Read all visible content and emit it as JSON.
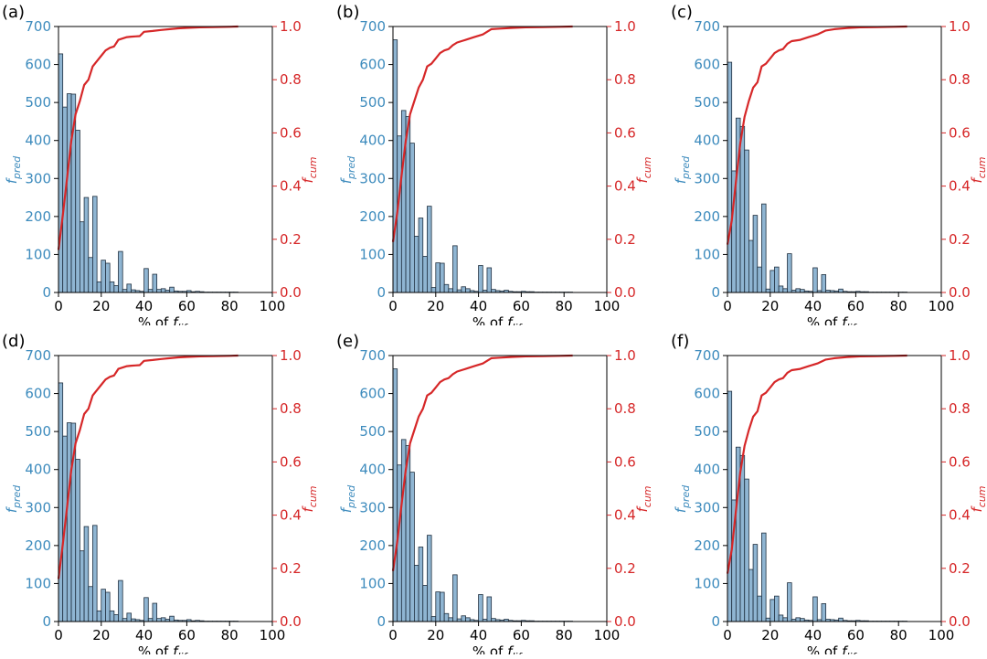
{
  "chart_data": [
    {
      "panel_label": "(a)",
      "type": "bar",
      "xlabel_prefix": "% of ",
      "xlabel_main": "f",
      "xlabel_sub": "life",
      "ylabel_left_main": "f",
      "ylabel_left_sub": "pred",
      "ylabel_right_main": "f",
      "ylabel_right_sub": "cum",
      "xlim": [
        0,
        100
      ],
      "ylim_left": [
        0,
        700
      ],
      "ylim_right": [
        0,
        1.0
      ],
      "x_ticks": [
        "0",
        "20",
        "40",
        "60",
        "80",
        "100"
      ],
      "y_ticks_left": [
        "0",
        "100",
        "200",
        "300",
        "400",
        "500",
        "600",
        "700"
      ],
      "y_ticks_right": [
        "0.0",
        "0.2",
        "0.4",
        "0.6",
        "0.8",
        "1.0"
      ],
      "bin_width": 2,
      "bins": [
        0,
        2,
        4,
        6,
        8,
        10,
        12,
        14,
        16,
        18,
        20,
        22,
        24,
        26,
        28,
        30,
        32,
        34,
        36,
        38,
        40,
        42,
        44,
        46,
        48,
        50,
        52,
        54,
        56,
        58,
        60,
        62,
        64,
        66,
        68,
        70,
        72,
        74,
        76,
        78,
        80,
        82
      ],
      "series": [
        {
          "name": "f_pred",
          "values": [
            628,
            488,
            523,
            522,
            427,
            186,
            250,
            92,
            253,
            28,
            85,
            77,
            28,
            18,
            108,
            8,
            22,
            7,
            5,
            3,
            63,
            8,
            48,
            8,
            10,
            6,
            14,
            4,
            3,
            3,
            5,
            2,
            3,
            2,
            1,
            1,
            1,
            1,
            1,
            1,
            1,
            1
          ]
        },
        {
          "name": "f_cum",
          "x": [
            0,
            2,
            4,
            6,
            8,
            10,
            12,
            14,
            16,
            18,
            20,
            22,
            24,
            26,
            28,
            30,
            32,
            34,
            36,
            38,
            40,
            44,
            48,
            52,
            56,
            60,
            66,
            72,
            80,
            84
          ],
          "values": [
            0.16,
            0.29,
            0.43,
            0.57,
            0.67,
            0.72,
            0.78,
            0.8,
            0.85,
            0.87,
            0.89,
            0.91,
            0.92,
            0.925,
            0.95,
            0.955,
            0.96,
            0.962,
            0.963,
            0.964,
            0.98,
            0.983,
            0.987,
            0.99,
            0.993,
            0.995,
            0.997,
            0.998,
            0.999,
            1.0
          ]
        }
      ]
    },
    {
      "panel_label": "(b)",
      "type": "bar",
      "xlabel_prefix": "% of ",
      "xlabel_main": "f",
      "xlabel_sub": "life",
      "ylabel_left_main": "f",
      "ylabel_left_sub": "pred",
      "ylabel_right_main": "f",
      "ylabel_right_sub": "cum",
      "xlim": [
        0,
        100
      ],
      "ylim_left": [
        0,
        700
      ],
      "ylim_right": [
        0,
        1.0
      ],
      "x_ticks": [
        "0",
        "20",
        "40",
        "60",
        "80",
        "100"
      ],
      "y_ticks_left": [
        "0",
        "100",
        "200",
        "300",
        "400",
        "500",
        "600",
        "700"
      ],
      "y_ticks_right": [
        "0.0",
        "0.2",
        "0.4",
        "0.6",
        "0.8",
        "1.0"
      ],
      "bin_width": 2,
      "bins": [
        0,
        2,
        4,
        6,
        8,
        10,
        12,
        14,
        16,
        18,
        20,
        22,
        24,
        26,
        28,
        30,
        32,
        34,
        36,
        38,
        40,
        42,
        44,
        46,
        48,
        50,
        52,
        54,
        56,
        58,
        60,
        62,
        64,
        66,
        68,
        70,
        72,
        74,
        76,
        78,
        80,
        82
      ],
      "series": [
        {
          "name": "f_pred",
          "values": [
            665,
            412,
            479,
            463,
            393,
            148,
            196,
            95,
            227,
            13,
            78,
            77,
            21,
            10,
            123,
            7,
            15,
            10,
            5,
            3,
            71,
            6,
            65,
            8,
            5,
            4,
            6,
            3,
            2,
            2,
            3,
            2,
            2,
            1,
            1,
            1,
            1,
            1,
            1,
            1,
            1,
            1
          ]
        },
        {
          "name": "f_cum",
          "x": [
            0,
            2,
            4,
            6,
            8,
            10,
            12,
            14,
            16,
            18,
            20,
            22,
            24,
            26,
            28,
            30,
            34,
            38,
            42,
            46,
            50,
            56,
            62,
            70,
            78,
            84
          ],
          "values": [
            0.19,
            0.3,
            0.44,
            0.57,
            0.67,
            0.72,
            0.77,
            0.8,
            0.85,
            0.86,
            0.88,
            0.9,
            0.91,
            0.915,
            0.93,
            0.94,
            0.95,
            0.96,
            0.97,
            0.99,
            0.992,
            0.995,
            0.997,
            0.998,
            0.999,
            1.0
          ]
        }
      ]
    },
    {
      "panel_label": "(c)",
      "type": "bar",
      "xlabel_prefix": "% of ",
      "xlabel_main": "f",
      "xlabel_sub": "life",
      "ylabel_left_main": "f",
      "ylabel_left_sub": "pred",
      "ylabel_right_main": "f",
      "ylabel_right_sub": "cum",
      "xlim": [
        0,
        100
      ],
      "ylim_left": [
        0,
        700
      ],
      "ylim_right": [
        0,
        1.0
      ],
      "x_ticks": [
        "0",
        "20",
        "40",
        "60",
        "80",
        "100"
      ],
      "y_ticks_left": [
        "0",
        "100",
        "200",
        "300",
        "400",
        "500",
        "600",
        "700"
      ],
      "y_ticks_right": [
        "0.0",
        "0.2",
        "0.4",
        "0.6",
        "0.8",
        "1.0"
      ],
      "bin_width": 2,
      "bins": [
        0,
        2,
        4,
        6,
        8,
        10,
        12,
        14,
        16,
        18,
        20,
        22,
        24,
        26,
        28,
        30,
        32,
        34,
        36,
        38,
        40,
        42,
        44,
        46,
        48,
        50,
        52,
        54,
        56,
        58,
        60,
        62,
        64,
        66,
        68,
        70,
        72,
        74,
        76,
        78,
        80,
        82
      ],
      "series": [
        {
          "name": "f_pred",
          "values": [
            606,
            320,
            459,
            437,
            375,
            137,
            203,
            67,
            233,
            9,
            58,
            67,
            17,
            10,
            102,
            6,
            10,
            8,
            4,
            3,
            65,
            5,
            47,
            6,
            5,
            4,
            9,
            3,
            2,
            2,
            3,
            2,
            2,
            1,
            1,
            1,
            1,
            1,
            1,
            1,
            1,
            1
          ]
        },
        {
          "name": "f_cum",
          "x": [
            0,
            2,
            4,
            6,
            8,
            10,
            12,
            14,
            16,
            18,
            20,
            22,
            24,
            26,
            28,
            30,
            34,
            38,
            42,
            46,
            50,
            56,
            62,
            70,
            78,
            84
          ],
          "values": [
            0.18,
            0.27,
            0.42,
            0.56,
            0.66,
            0.72,
            0.77,
            0.79,
            0.85,
            0.86,
            0.88,
            0.9,
            0.91,
            0.915,
            0.935,
            0.945,
            0.95,
            0.96,
            0.97,
            0.985,
            0.99,
            0.994,
            0.997,
            0.998,
            0.999,
            1.0
          ]
        }
      ]
    },
    {
      "panel_label": "(d)",
      "type": "bar",
      "xlabel_prefix": "% of ",
      "xlabel_main": "f",
      "xlabel_sub": "life",
      "ylabel_left_main": "f",
      "ylabel_left_sub": "pred",
      "ylabel_right_main": "f",
      "ylabel_right_sub": "cum",
      "xlim": [
        0,
        100
      ],
      "ylim_left": [
        0,
        700
      ],
      "ylim_right": [
        0,
        1.0
      ],
      "x_ticks": [
        "0",
        "20",
        "40",
        "60",
        "80",
        "100"
      ],
      "y_ticks_left": [
        "0",
        "100",
        "200",
        "300",
        "400",
        "500",
        "600",
        "700"
      ],
      "y_ticks_right": [
        "0.0",
        "0.2",
        "0.4",
        "0.6",
        "0.8",
        "1.0"
      ],
      "bin_width": 2,
      "bins": [
        0,
        2,
        4,
        6,
        8,
        10,
        12,
        14,
        16,
        18,
        20,
        22,
        24,
        26,
        28,
        30,
        32,
        34,
        36,
        38,
        40,
        42,
        44,
        46,
        48,
        50,
        52,
        54,
        56,
        58,
        60,
        62,
        64,
        66,
        68,
        70,
        72,
        74,
        76,
        78,
        80,
        82
      ],
      "series": [
        {
          "name": "f_pred",
          "values": [
            628,
            488,
            523,
            522,
            427,
            186,
            250,
            92,
            253,
            28,
            85,
            77,
            28,
            18,
            108,
            8,
            22,
            7,
            5,
            3,
            63,
            8,
            48,
            8,
            10,
            6,
            14,
            4,
            3,
            3,
            5,
            2,
            3,
            2,
            1,
            1,
            1,
            1,
            1,
            1,
            1,
            1
          ]
        },
        {
          "name": "f_cum",
          "x": [
            0,
            2,
            4,
            6,
            8,
            10,
            12,
            14,
            16,
            18,
            20,
            22,
            24,
            26,
            28,
            30,
            32,
            34,
            36,
            38,
            40,
            44,
            48,
            52,
            56,
            60,
            66,
            72,
            80,
            84
          ],
          "values": [
            0.16,
            0.29,
            0.43,
            0.57,
            0.67,
            0.72,
            0.78,
            0.8,
            0.85,
            0.87,
            0.89,
            0.91,
            0.92,
            0.925,
            0.95,
            0.955,
            0.96,
            0.962,
            0.963,
            0.964,
            0.98,
            0.983,
            0.987,
            0.99,
            0.993,
            0.995,
            0.997,
            0.998,
            0.999,
            1.0
          ]
        }
      ]
    },
    {
      "panel_label": "(e)",
      "type": "bar",
      "xlabel_prefix": "% of ",
      "xlabel_main": "f",
      "xlabel_sub": "life",
      "ylabel_left_main": "f",
      "ylabel_left_sub": "pred",
      "ylabel_right_main": "f",
      "ylabel_right_sub": "cum",
      "xlim": [
        0,
        100
      ],
      "ylim_left": [
        0,
        700
      ],
      "ylim_right": [
        0,
        1.0
      ],
      "x_ticks": [
        "0",
        "20",
        "40",
        "60",
        "80",
        "100"
      ],
      "y_ticks_left": [
        "0",
        "100",
        "200",
        "300",
        "400",
        "500",
        "600",
        "700"
      ],
      "y_ticks_right": [
        "0.0",
        "0.2",
        "0.4",
        "0.6",
        "0.8",
        "1.0"
      ],
      "bin_width": 2,
      "bins": [
        0,
        2,
        4,
        6,
        8,
        10,
        12,
        14,
        16,
        18,
        20,
        22,
        24,
        26,
        28,
        30,
        32,
        34,
        36,
        38,
        40,
        42,
        44,
        46,
        48,
        50,
        52,
        54,
        56,
        58,
        60,
        62,
        64,
        66,
        68,
        70,
        72,
        74,
        76,
        78,
        80,
        82
      ],
      "series": [
        {
          "name": "f_pred",
          "values": [
            665,
            412,
            479,
            463,
            393,
            148,
            196,
            95,
            227,
            13,
            78,
            77,
            21,
            10,
            123,
            7,
            15,
            10,
            5,
            3,
            71,
            6,
            65,
            8,
            5,
            4,
            6,
            3,
            2,
            2,
            3,
            2,
            2,
            1,
            1,
            1,
            1,
            1,
            1,
            1,
            1,
            1
          ]
        },
        {
          "name": "f_cum",
          "x": [
            0,
            2,
            4,
            6,
            8,
            10,
            12,
            14,
            16,
            18,
            20,
            22,
            24,
            26,
            28,
            30,
            34,
            38,
            42,
            46,
            50,
            56,
            62,
            70,
            78,
            84
          ],
          "values": [
            0.19,
            0.3,
            0.44,
            0.57,
            0.67,
            0.72,
            0.77,
            0.8,
            0.85,
            0.86,
            0.88,
            0.9,
            0.91,
            0.915,
            0.93,
            0.94,
            0.95,
            0.96,
            0.97,
            0.99,
            0.992,
            0.995,
            0.997,
            0.998,
            0.999,
            1.0
          ]
        }
      ]
    },
    {
      "panel_label": "(f)",
      "type": "bar",
      "xlabel_prefix": "% of ",
      "xlabel_main": "f",
      "xlabel_sub": "life",
      "ylabel_left_main": "f",
      "ylabel_left_sub": "pred",
      "ylabel_right_main": "f",
      "ylabel_right_sub": "cum",
      "xlim": [
        0,
        100
      ],
      "ylim_left": [
        0,
        700
      ],
      "ylim_right": [
        0,
        1.0
      ],
      "x_ticks": [
        "0",
        "20",
        "40",
        "60",
        "80",
        "100"
      ],
      "y_ticks_left": [
        "0",
        "100",
        "200",
        "300",
        "400",
        "500",
        "600",
        "700"
      ],
      "y_ticks_right": [
        "0.0",
        "0.2",
        "0.4",
        "0.6",
        "0.8",
        "1.0"
      ],
      "bin_width": 2,
      "bins": [
        0,
        2,
        4,
        6,
        8,
        10,
        12,
        14,
        16,
        18,
        20,
        22,
        24,
        26,
        28,
        30,
        32,
        34,
        36,
        38,
        40,
        42,
        44,
        46,
        48,
        50,
        52,
        54,
        56,
        58,
        60,
        62,
        64,
        66,
        68,
        70,
        72,
        74,
        76,
        78,
        80,
        82
      ],
      "series": [
        {
          "name": "f_pred",
          "values": [
            606,
            320,
            459,
            437,
            375,
            137,
            203,
            67,
            233,
            9,
            58,
            67,
            17,
            10,
            102,
            6,
            10,
            8,
            4,
            3,
            65,
            5,
            47,
            6,
            5,
            4,
            9,
            3,
            2,
            2,
            3,
            2,
            2,
            1,
            1,
            1,
            1,
            1,
            1,
            1,
            1,
            1
          ]
        },
        {
          "name": "f_cum",
          "x": [
            0,
            2,
            4,
            6,
            8,
            10,
            12,
            14,
            16,
            18,
            20,
            22,
            24,
            26,
            28,
            30,
            34,
            38,
            42,
            46,
            50,
            56,
            62,
            70,
            78,
            84
          ],
          "values": [
            0.18,
            0.27,
            0.42,
            0.56,
            0.66,
            0.72,
            0.77,
            0.79,
            0.85,
            0.86,
            0.88,
            0.9,
            0.91,
            0.915,
            0.935,
            0.945,
            0.95,
            0.96,
            0.97,
            0.985,
            0.99,
            0.994,
            0.997,
            0.998,
            0.999,
            1.0
          ]
        }
      ]
    }
  ]
}
